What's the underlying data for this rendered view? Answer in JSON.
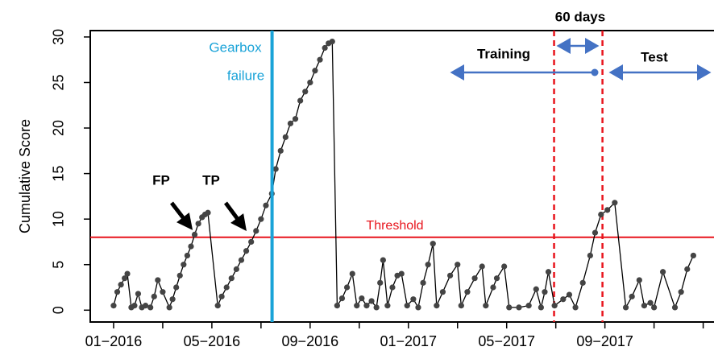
{
  "chart_data": {
    "type": "line",
    "ylabel": "Cumulative Score",
    "xlim": [
      -0.95,
      24.44
    ],
    "ylim": [
      -1.3,
      30.7
    ],
    "xticks": [
      {
        "value": 0,
        "label": "01−2016"
      },
      {
        "value": 2,
        "label": null
      },
      {
        "value": 4,
        "label": "05−2016"
      },
      {
        "value": 6,
        "label": null
      },
      {
        "value": 8,
        "label": "09−2016"
      },
      {
        "value": 10,
        "label": null
      },
      {
        "value": 12,
        "label": "01−2017"
      },
      {
        "value": 14,
        "label": null
      },
      {
        "value": 16,
        "label": "05−2017"
      },
      {
        "value": 18,
        "label": null
      },
      {
        "value": 20,
        "label": "09−2017"
      },
      {
        "value": 22,
        "label": null
      },
      {
        "value": 24,
        "label": null
      }
    ],
    "yticks": [
      0,
      5,
      10,
      15,
      20,
      25,
      30
    ],
    "series": [
      {
        "name": "Cumulative Score",
        "color": "#000000",
        "marker_color": "#444444",
        "x": [
          0,
          0.15,
          0.3,
          0.45,
          0.56,
          0.72,
          0.85,
          1.0,
          1.15,
          1.3,
          1.5,
          1.65,
          1.8,
          2.0,
          2.27,
          2.4,
          2.55,
          2.7,
          2.85,
          3.0,
          3.15,
          3.3,
          3.45,
          3.6,
          3.72,
          3.84,
          4.24,
          4.4,
          4.6,
          4.8,
          5.0,
          5.2,
          5.4,
          5.6,
          5.8,
          6.0,
          6.2,
          6.44,
          6.6,
          6.8,
          7.0,
          7.2,
          7.4,
          7.6,
          7.8,
          8.0,
          8.2,
          8.4,
          8.6,
          8.75,
          8.9,
          9.1,
          9.3,
          9.5,
          9.72,
          9.9,
          10.1,
          10.3,
          10.5,
          10.7,
          10.85,
          10.97,
          11.15,
          11.35,
          11.55,
          11.72,
          11.95,
          12.2,
          12.4,
          12.6,
          12.8,
          13.0,
          13.15,
          13.4,
          13.7,
          14.0,
          14.15,
          14.4,
          14.7,
          15.0,
          15.15,
          15.45,
          15.6,
          15.9,
          16.1,
          16.5,
          16.9,
          17.2,
          17.4,
          17.55,
          17.7,
          17.95,
          18.3,
          18.55,
          18.8,
          19.1,
          19.4,
          19.6,
          19.84,
          20.1,
          20.4,
          20.85,
          21.1,
          21.4,
          21.6,
          21.85,
          22.0,
          22.36,
          22.85,
          23.1,
          23.35,
          23.6
        ],
        "values": [
          0.5,
          2,
          2.8,
          3.5,
          4,
          0.3,
          0.5,
          1.8,
          0.3,
          0.5,
          0.3,
          1.5,
          3.3,
          2,
          0.3,
          1.2,
          2.5,
          3.8,
          5,
          6,
          7,
          8.3,
          9.5,
          10.2,
          10.5,
          10.7,
          0.5,
          1.5,
          2.5,
          3.5,
          4.5,
          5.5,
          6.5,
          7.5,
          8.7,
          10,
          11.5,
          12.8,
          15.5,
          17.5,
          19,
          20.5,
          21,
          23,
          24,
          25,
          26.3,
          27.5,
          28.8,
          29.3,
          29.5,
          0.5,
          1.3,
          2.5,
          4,
          0.5,
          1.3,
          0.5,
          1,
          0.3,
          3,
          5.5,
          0.5,
          2.5,
          3.8,
          4,
          0.5,
          1.2,
          0.3,
          3,
          5,
          7.3,
          0.5,
          2,
          3.8,
          5,
          0.5,
          2,
          3.5,
          4.8,
          0.5,
          2.5,
          3.5,
          4.8,
          0.3,
          0.3,
          0.5,
          2.3,
          0.3,
          2,
          4.2,
          0.5,
          1.2,
          1.7,
          0.3,
          3,
          6,
          8.5,
          10.5,
          11,
          11.8,
          0.3,
          1.5,
          3.3,
          0.5,
          0.8,
          0.3,
          4.2,
          0.3,
          2,
          4.5,
          6
        ]
      }
    ],
    "threshold": {
      "value": 8,
      "label": "Threshold",
      "color": "#e8141c"
    },
    "failure": {
      "x": 6.45,
      "label": [
        "Gearbox",
        "failure"
      ],
      "color": "#1aa3d8"
    },
    "split": {
      "x": [
        17.93,
        19.9
      ],
      "color": "#e8141c"
    },
    "annotations": {
      "window": "60 days",
      "training": "Training",
      "test": "Test",
      "fp": "FP",
      "tp": "TP"
    }
  }
}
